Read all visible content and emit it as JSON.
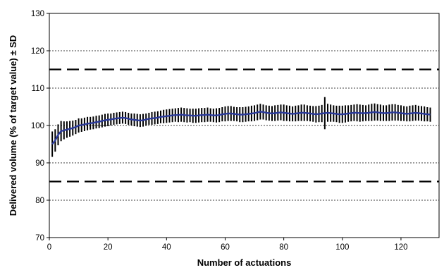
{
  "chart_data": {
    "type": "line",
    "title": "",
    "xlabel": "Number of actuations",
    "ylabel": "Delivered volume (% of target value) ± SD",
    "xlim": [
      0,
      133
    ],
    "ylim": [
      70,
      130
    ],
    "x_ticks": [
      0,
      20,
      40,
      60,
      80,
      100,
      120
    ],
    "y_ticks": [
      70,
      80,
      90,
      100,
      110,
      120,
      130
    ],
    "gridlines": [
      80,
      90,
      100,
      110,
      120
    ],
    "grid": "horizontal dotted",
    "reference_lines": [
      {
        "y": 115,
        "style": "dashed"
      },
      {
        "y": 85,
        "style": "dashed"
      }
    ],
    "series": [
      {
        "x": [
          1,
          2,
          3,
          4,
          5,
          6,
          7,
          8,
          9,
          10,
          11,
          12,
          13,
          14,
          15,
          16,
          17,
          18,
          19,
          20,
          21,
          22,
          23,
          24,
          25,
          26,
          27,
          28,
          29,
          30,
          31,
          32,
          33,
          34,
          35,
          36,
          37,
          38,
          39,
          40,
          41,
          42,
          43,
          44,
          45,
          46,
          47,
          48,
          49,
          50,
          51,
          52,
          53,
          54,
          55,
          56,
          57,
          58,
          59,
          60,
          61,
          62,
          63,
          64,
          65,
          66,
          67,
          68,
          69,
          70,
          71,
          72,
          73,
          74,
          75,
          76,
          77,
          78,
          79,
          80,
          81,
          82,
          83,
          84,
          85,
          86,
          87,
          88,
          89,
          90,
          91,
          92,
          93,
          94,
          95,
          96,
          97,
          98,
          99,
          100,
          101,
          102,
          103,
          104,
          105,
          106,
          107,
          108,
          109,
          110,
          111,
          112,
          113,
          114,
          115,
          116,
          117,
          118,
          119,
          120,
          121,
          122,
          123,
          124,
          125,
          126,
          127,
          128,
          129,
          130
        ],
        "mean": [
          95.0,
          96.0,
          97.5,
          98.5,
          98.7,
          98.9,
          99.1,
          99.3,
          99.6,
          100.0,
          100.1,
          100.3,
          100.5,
          100.6,
          100.7,
          100.9,
          101.0,
          101.2,
          101.4,
          101.5,
          101.6,
          101.8,
          101.9,
          102.0,
          102.1,
          102.0,
          101.8,
          101.6,
          101.5,
          101.4,
          101.3,
          101.4,
          101.6,
          101.8,
          101.9,
          102.0,
          102.1,
          102.3,
          102.4,
          102.5,
          102.6,
          102.7,
          102.8,
          102.8,
          102.9,
          102.8,
          102.7,
          102.7,
          102.6,
          102.6,
          102.7,
          102.8,
          102.8,
          102.9,
          102.8,
          102.7,
          102.7,
          102.8,
          103.0,
          103.1,
          103.2,
          103.2,
          103.1,
          103.0,
          102.9,
          102.9,
          103.0,
          103.1,
          103.2,
          103.3,
          103.5,
          103.7,
          103.6,
          103.4,
          103.3,
          103.2,
          103.3,
          103.4,
          103.5,
          103.4,
          103.3,
          103.2,
          103.1,
          103.2,
          103.3,
          103.4,
          103.4,
          103.3,
          103.2,
          103.1,
          103.0,
          103.1,
          103.2,
          103.3,
          103.4,
          103.3,
          103.2,
          103.1,
          103.0,
          103.0,
          103.1,
          103.2,
          103.3,
          103.4,
          103.4,
          103.3,
          103.3,
          103.3,
          103.4,
          103.5,
          103.6,
          103.5,
          103.4,
          103.3,
          103.3,
          103.4,
          103.5,
          103.5,
          103.4,
          103.3,
          103.2,
          103.1,
          103.2,
          103.3,
          103.4,
          103.3,
          103.2,
          103.1,
          103.0,
          102.9
        ],
        "sd": [
          3.4,
          3.0,
          2.8,
          2.7,
          2.4,
          2.2,
          2.1,
          2.0,
          1.9,
          1.9,
          1.8,
          1.8,
          1.8,
          1.7,
          1.7,
          1.7,
          1.7,
          1.7,
          1.7,
          1.7,
          1.6,
          1.6,
          1.6,
          1.6,
          1.6,
          1.6,
          1.6,
          1.6,
          1.7,
          1.7,
          1.7,
          1.7,
          1.6,
          1.6,
          1.7,
          1.7,
          1.7,
          1.7,
          1.8,
          1.8,
          1.8,
          1.8,
          1.8,
          1.9,
          1.9,
          1.9,
          1.9,
          1.8,
          1.9,
          1.9,
          1.9,
          1.9,
          1.9,
          1.9,
          1.8,
          1.8,
          1.9,
          1.9,
          1.9,
          2.0,
          2.0,
          2.0,
          1.9,
          1.9,
          2.0,
          2.0,
          2.0,
          2.0,
          2.1,
          2.1,
          2.1,
          2.1,
          2.0,
          2.0,
          2.0,
          2.0,
          2.1,
          2.1,
          2.1,
          2.2,
          2.1,
          2.1,
          2.0,
          2.1,
          2.1,
          2.2,
          2.2,
          2.1,
          2.1,
          2.1,
          2.2,
          2.2,
          2.3,
          4.3,
          2.4,
          2.3,
          2.2,
          2.2,
          2.3,
          2.3,
          2.3,
          2.2,
          2.2,
          2.2,
          2.3,
          2.3,
          2.2,
          2.1,
          2.2,
          2.3,
          2.3,
          2.2,
          2.2,
          2.1,
          2.1,
          2.2,
          2.2,
          2.2,
          2.1,
          2.1,
          2.0,
          2.0,
          2.1,
          2.1,
          2.1,
          2.0,
          2.0,
          2.0,
          1.9,
          1.9
        ]
      }
    ]
  }
}
